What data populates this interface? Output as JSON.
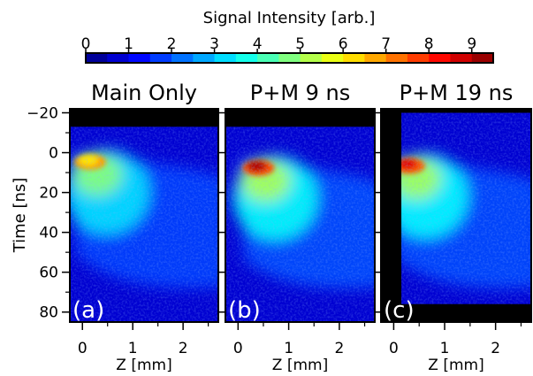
{
  "chart_data": {
    "type": "heatmap",
    "colorbar": {
      "label": "Signal Intensity [arb.]",
      "ticks": [
        "0",
        "1",
        "2",
        "3",
        "4",
        "5",
        "6",
        "7",
        "8",
        "9"
      ],
      "range": [
        0,
        9.5
      ],
      "colormap": "jet",
      "bins": 19
    },
    "y_axis": {
      "label": "Time [ns]",
      "ticks": [
        "−20",
        "0",
        "20",
        "40",
        "60",
        "80"
      ],
      "tick_values": [
        -20,
        0,
        20,
        40,
        60,
        80
      ],
      "range": [
        -22,
        85
      ],
      "inverted": true
    },
    "panels": [
      {
        "title": "Main Only",
        "tag": "(a)",
        "xlabel": "Z [mm]",
        "xticks": [
          "0",
          "1",
          "2"
        ],
        "xtick_values": [
          0,
          1,
          2
        ],
        "xlim": [
          -0.25,
          2.7
        ],
        "masked_time_before": -13,
        "masked_z_before": null,
        "masked_time_after": null,
        "peak_intensity": 6.5,
        "peak_time": 2,
        "peak_z": 0.05
      },
      {
        "title": "P+M 9 ns",
        "tag": "(b)",
        "xlabel": "Z [mm]",
        "xticks": [
          "0",
          "1",
          "2"
        ],
        "xtick_values": [
          0,
          1,
          2
        ],
        "xlim": [
          -0.25,
          2.7
        ],
        "masked_time_before": -13,
        "masked_z_before": null,
        "masked_time_after": null,
        "peak_intensity": 9.5,
        "peak_time": 5,
        "peak_z": 0.3
      },
      {
        "title": "P+M 19 ns",
        "tag": "(c)",
        "xlabel": "Z [mm]",
        "xticks": [
          "0",
          "1",
          "2"
        ],
        "xtick_values": [
          0,
          1,
          2
        ],
        "xlim": [
          -0.25,
          2.7
        ],
        "masked_time_before": -20,
        "masked_z_before": 0.15,
        "masked_time_after": 76,
        "peak_intensity": 9.0,
        "peak_time": 4,
        "peak_z": 0.2
      }
    ]
  }
}
